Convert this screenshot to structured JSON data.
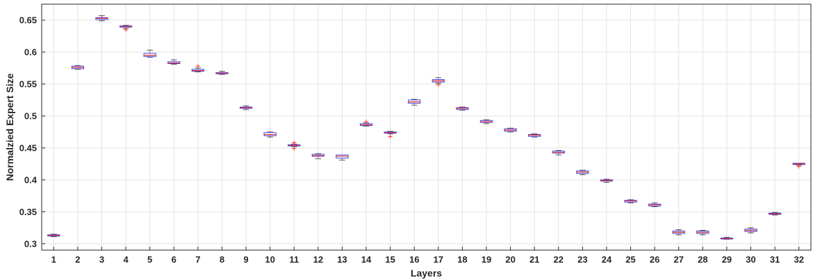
{
  "chart_data": {
    "type": "box",
    "xlabel": "Layers",
    "ylabel": "Normalzied Expert Size",
    "ylim": [
      0.29,
      0.675
    ],
    "yticks": [
      "0.3",
      "0.35",
      "0.4",
      "0.45",
      "0.5",
      "0.55",
      "0.6",
      "0.65"
    ],
    "categories": [
      "1",
      "2",
      "3",
      "4",
      "5",
      "6",
      "7",
      "8",
      "9",
      "10",
      "11",
      "12",
      "13",
      "14",
      "15",
      "16",
      "17",
      "18",
      "19",
      "20",
      "21",
      "22",
      "23",
      "24",
      "25",
      "26",
      "27",
      "28",
      "29",
      "30",
      "31",
      "32"
    ],
    "grid": true,
    "colors": {
      "box": "#4a4adf",
      "median": "#d9262e",
      "outlier": "#ff2a2a",
      "whisker": "#555555"
    },
    "boxes": [
      {
        "min": 0.311,
        "q1": 0.312,
        "median": 0.313,
        "q3": 0.314,
        "max": 0.315,
        "outliers": []
      },
      {
        "min": 0.573,
        "q1": 0.574,
        "median": 0.576,
        "q3": 0.578,
        "max": 0.579,
        "outliers": []
      },
      {
        "min": 0.649,
        "q1": 0.651,
        "median": 0.653,
        "q3": 0.654,
        "max": 0.657,
        "outliers": []
      },
      {
        "min": 0.637,
        "q1": 0.639,
        "median": 0.64,
        "q3": 0.641,
        "max": 0.642,
        "outliers": [
          0.635
        ]
      },
      {
        "min": 0.592,
        "q1": 0.593,
        "median": 0.595,
        "q3": 0.598,
        "max": 0.603,
        "outliers": []
      },
      {
        "min": 0.581,
        "q1": 0.582,
        "median": 0.583,
        "q3": 0.585,
        "max": 0.588,
        "outliers": []
      },
      {
        "min": 0.569,
        "q1": 0.57,
        "median": 0.571,
        "q3": 0.573,
        "max": 0.575,
        "outliers": [
          0.578
        ]
      },
      {
        "min": 0.565,
        "q1": 0.566,
        "median": 0.567,
        "q3": 0.568,
        "max": 0.57,
        "outliers": []
      },
      {
        "min": 0.51,
        "q1": 0.512,
        "median": 0.513,
        "q3": 0.514,
        "max": 0.516,
        "outliers": []
      },
      {
        "min": 0.467,
        "q1": 0.469,
        "median": 0.471,
        "q3": 0.474,
        "max": 0.475,
        "outliers": []
      },
      {
        "min": 0.452,
        "q1": 0.453,
        "median": 0.454,
        "q3": 0.455,
        "max": 0.456,
        "outliers": [
          0.458,
          0.449
        ]
      },
      {
        "min": 0.433,
        "q1": 0.437,
        "median": 0.438,
        "q3": 0.44,
        "max": 0.441,
        "outliers": []
      },
      {
        "min": 0.431,
        "q1": 0.434,
        "median": 0.437,
        "q3": 0.439,
        "max": 0.439,
        "outliers": []
      },
      {
        "min": 0.484,
        "q1": 0.485,
        "median": 0.486,
        "q3": 0.488,
        "max": 0.489,
        "outliers": [
          0.491
        ]
      },
      {
        "min": 0.472,
        "q1": 0.473,
        "median": 0.474,
        "q3": 0.475,
        "max": 0.476,
        "outliers": [
          0.468
        ]
      },
      {
        "min": 0.517,
        "q1": 0.52,
        "median": 0.522,
        "q3": 0.525,
        "max": 0.526,
        "outliers": []
      },
      {
        "min": 0.551,
        "q1": 0.553,
        "median": 0.555,
        "q3": 0.557,
        "max": 0.56,
        "outliers": [
          0.549
        ]
      },
      {
        "min": 0.509,
        "q1": 0.51,
        "median": 0.512,
        "q3": 0.513,
        "max": 0.514,
        "outliers": []
      },
      {
        "min": 0.488,
        "q1": 0.49,
        "median": 0.491,
        "q3": 0.493,
        "max": 0.494,
        "outliers": []
      },
      {
        "min": 0.475,
        "q1": 0.476,
        "median": 0.478,
        "q3": 0.48,
        "max": 0.481,
        "outliers": []
      },
      {
        "min": 0.467,
        "q1": 0.468,
        "median": 0.47,
        "q3": 0.471,
        "max": 0.472,
        "outliers": []
      },
      {
        "min": 0.439,
        "q1": 0.442,
        "median": 0.443,
        "q3": 0.445,
        "max": 0.446,
        "outliers": []
      },
      {
        "min": 0.408,
        "q1": 0.41,
        "median": 0.412,
        "q3": 0.414,
        "max": 0.415,
        "outliers": []
      },
      {
        "min": 0.396,
        "q1": 0.398,
        "median": 0.399,
        "q3": 0.4,
        "max": 0.401,
        "outliers": []
      },
      {
        "min": 0.364,
        "q1": 0.365,
        "median": 0.367,
        "q3": 0.368,
        "max": 0.369,
        "outliers": []
      },
      {
        "min": 0.358,
        "q1": 0.359,
        "median": 0.361,
        "q3": 0.362,
        "max": 0.364,
        "outliers": []
      },
      {
        "min": 0.314,
        "q1": 0.316,
        "median": 0.318,
        "q3": 0.32,
        "max": 0.322,
        "outliers": []
      },
      {
        "min": 0.314,
        "q1": 0.316,
        "median": 0.318,
        "q3": 0.32,
        "max": 0.321,
        "outliers": []
      },
      {
        "min": 0.307,
        "q1": 0.308,
        "median": 0.308,
        "q3": 0.309,
        "max": 0.31,
        "outliers": []
      },
      {
        "min": 0.317,
        "q1": 0.319,
        "median": 0.321,
        "q3": 0.323,
        "max": 0.325,
        "outliers": []
      },
      {
        "min": 0.345,
        "q1": 0.346,
        "median": 0.347,
        "q3": 0.348,
        "max": 0.349,
        "outliers": []
      },
      {
        "min": 0.423,
        "q1": 0.424,
        "median": 0.425,
        "q3": 0.426,
        "max": 0.426,
        "outliers": [
          0.421
        ]
      }
    ]
  }
}
